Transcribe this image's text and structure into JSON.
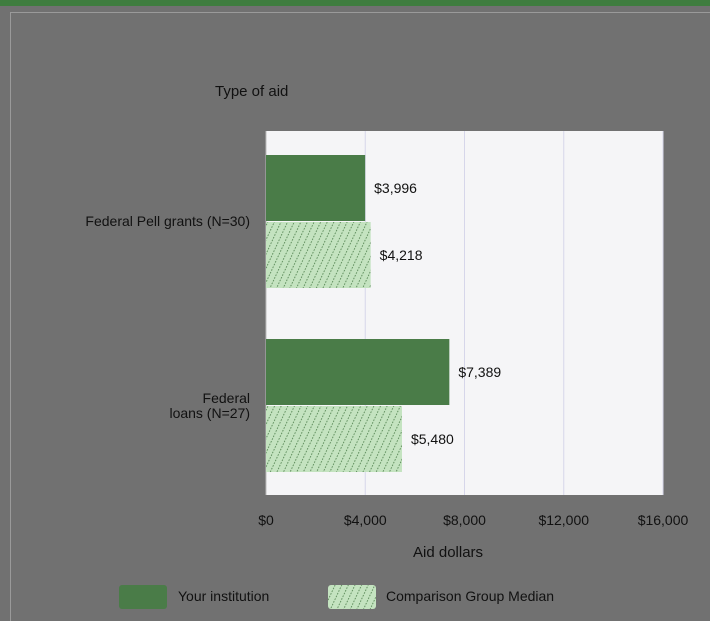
{
  "chart_data": {
    "type": "bar",
    "orientation": "horizontal",
    "title": "",
    "ylabel": "Type of aid",
    "xlabel": "Aid dollars",
    "categories": [
      "Federal Pell grants (N=30)",
      "Federal\nloans (N=27)"
    ],
    "series": [
      {
        "name": "Your institution",
        "values": [
          3996,
          7389
        ],
        "labels": [
          "$3,996",
          "$7,389"
        ],
        "color": "#4a7c48",
        "pattern": "solid"
      },
      {
        "name": "Comparison Group Median",
        "values": [
          4218,
          5480
        ],
        "labels": [
          "$4,218",
          "$5,480"
        ],
        "color": "#c4e3c0",
        "pattern": "hatched"
      }
    ],
    "xlim": [
      0,
      16000
    ],
    "xticks": [
      0,
      4000,
      8000,
      12000,
      16000
    ],
    "xtick_labels": [
      "$0",
      "$4,000",
      "$8,000",
      "$12,000",
      "$16,000"
    ],
    "grid": true,
    "legend_position": "bottom"
  }
}
